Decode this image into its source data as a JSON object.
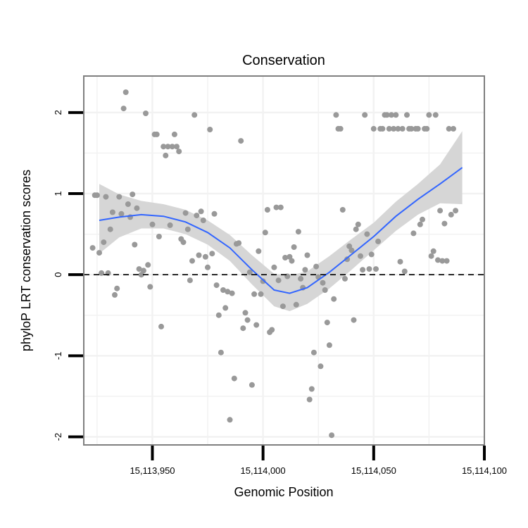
{
  "chart_data": {
    "type": "scatter",
    "title": "Conservation",
    "xlabel": "Genomic Position",
    "ylabel": "phyloP LRT conservation scores",
    "xlim": [
      15113919,
      15114100
    ],
    "ylim": [
      -2.1,
      2.45
    ],
    "x_ticks": [
      15113950,
      15114000,
      15114050,
      15114100
    ],
    "x_tick_labels": [
      "15,113,950",
      "15,114,000",
      "15,114,050",
      "15,114,100"
    ],
    "y_ticks": [
      -2,
      -1,
      0,
      1,
      2
    ],
    "y_tick_labels": [
      "-2",
      "-1",
      "0",
      "1",
      "2"
    ],
    "grid": true,
    "reference_line": {
      "y": 0,
      "style": "dashed"
    },
    "colors": {
      "points": "#999999",
      "smooth_line": "#3366ff",
      "confidence_band": "#d6d6d6",
      "grid": "#f2f2f2",
      "panel_border": "#7f7f7f",
      "reference_line": "#000000"
    },
    "smooth": {
      "method": "loess",
      "x": [
        15113926,
        15113935,
        15113945,
        15113955,
        15113965,
        15113975,
        15113985,
        15113995,
        15114005,
        15114012,
        15114020,
        15114030,
        15114040,
        15114050,
        15114060,
        15114070,
        15114080,
        15114090
      ],
      "y": [
        0.67,
        0.71,
        0.74,
        0.72,
        0.65,
        0.52,
        0.33,
        0.06,
        -0.19,
        -0.23,
        -0.16,
        0.03,
        0.25,
        0.47,
        0.72,
        0.93,
        1.12,
        1.32
      ],
      "lower": [
        0.26,
        0.46,
        0.57,
        0.57,
        0.5,
        0.37,
        0.17,
        -0.12,
        -0.39,
        -0.45,
        -0.36,
        -0.17,
        0.06,
        0.3,
        0.54,
        0.74,
        0.88,
        0.87
      ],
      "upper": [
        1.12,
        0.99,
        0.91,
        0.87,
        0.8,
        0.67,
        0.49,
        0.24,
        0.01,
        -0.01,
        0.04,
        0.23,
        0.44,
        0.64,
        0.9,
        1.12,
        1.36,
        1.77
      ]
    },
    "points": [
      [
        15113923,
        0.33
      ],
      [
        15113924,
        0.98
      ],
      [
        15113925,
        0.98
      ],
      [
        15113926,
        0.27
      ],
      [
        15113927,
        0.02
      ],
      [
        15113928,
        0.4
      ],
      [
        15113929,
        0.96
      ],
      [
        15113930,
        0.02
      ],
      [
        15113931,
        0.56
      ],
      [
        15113932,
        0.77
      ],
      [
        15113933,
        -0.25
      ],
      [
        15113934,
        -0.17
      ],
      [
        15113935,
        0.96
      ],
      [
        15113936,
        0.75
      ],
      [
        15113937,
        2.05
      ],
      [
        15113938,
        2.25
      ],
      [
        15113939,
        0.87
      ],
      [
        15113940,
        0.71
      ],
      [
        15113941,
        0.99
      ],
      [
        15113942,
        0.37
      ],
      [
        15113943,
        0.82
      ],
      [
        15113944,
        0.07
      ],
      [
        15113945,
        0.0
      ],
      [
        15113946,
        0.05
      ],
      [
        15113947,
        1.99
      ],
      [
        15113948,
        0.12
      ],
      [
        15113949,
        -0.15
      ],
      [
        15113950,
        0.62
      ],
      [
        15113951,
        1.73
      ],
      [
        15113952,
        1.73
      ],
      [
        15113953,
        0.47
      ],
      [
        15113954,
        -0.64
      ],
      [
        15113955,
        1.58
      ],
      [
        15113956,
        1.47
      ],
      [
        15113957,
        1.58
      ],
      [
        15113958,
        0.61
      ],
      [
        15113959,
        1.58
      ],
      [
        15113960,
        1.73
      ],
      [
        15113961,
        1.58
      ],
      [
        15113962,
        1.52
      ],
      [
        15113963,
        0.44
      ],
      [
        15113964,
        0.4
      ],
      [
        15113965,
        0.76
      ],
      [
        15113966,
        0.56
      ],
      [
        15113967,
        -0.07
      ],
      [
        15113968,
        0.17
      ],
      [
        15113969,
        1.97
      ],
      [
        15113970,
        0.73
      ],
      [
        15113971,
        0.24
      ],
      [
        15113972,
        0.78
      ],
      [
        15113973,
        0.67
      ],
      [
        15113974,
        0.22
      ],
      [
        15113975,
        0.09
      ],
      [
        15113976,
        1.79
      ],
      [
        15113977,
        0.26
      ],
      [
        15113978,
        0.75
      ],
      [
        15113979,
        -0.13
      ],
      [
        15113980,
        -0.5
      ],
      [
        15113981,
        -0.96
      ],
      [
        15113982,
        -0.19
      ],
      [
        15113983,
        -0.41
      ],
      [
        15113984,
        -0.21
      ],
      [
        15113985,
        -1.79
      ],
      [
        15113986,
        -0.23
      ],
      [
        15113987,
        -1.28
      ],
      [
        15113988,
        0.38
      ],
      [
        15113989,
        0.39
      ],
      [
        15113990,
        1.65
      ],
      [
        15113991,
        -0.66
      ],
      [
        15113992,
        -0.47
      ],
      [
        15113993,
        -0.56
      ],
      [
        15113994,
        0.03
      ],
      [
        15113995,
        -1.36
      ],
      [
        15113996,
        -0.24
      ],
      [
        15113997,
        -0.62
      ],
      [
        15113998,
        0.29
      ],
      [
        15113999,
        -0.24
      ],
      [
        15114000,
        -0.08
      ],
      [
        15114001,
        0.52
      ],
      [
        15114002,
        0.8
      ],
      [
        15114003,
        -0.71
      ],
      [
        15114004,
        -0.68
      ],
      [
        15114005,
        0.09
      ],
      [
        15114006,
        0.83
      ],
      [
        15114007,
        -0.07
      ],
      [
        15114008,
        0.83
      ],
      [
        15114009,
        -0.39
      ],
      [
        15114010,
        0.21
      ],
      [
        15114011,
        -0.02
      ],
      [
        15114012,
        0.22
      ],
      [
        15114013,
        0.17
      ],
      [
        15114014,
        0.34
      ],
      [
        15114015,
        -0.37
      ],
      [
        15114016,
        0.53
      ],
      [
        15114017,
        -0.05
      ],
      [
        15114018,
        -0.16
      ],
      [
        15114019,
        0.06
      ],
      [
        15114020,
        0.24
      ],
      [
        15114021,
        -1.54
      ],
      [
        15114022,
        -1.41
      ],
      [
        15114023,
        -0.96
      ],
      [
        15114024,
        0.1
      ],
      [
        15114025,
        -0.03
      ],
      [
        15114026,
        -1.13
      ],
      [
        15114027,
        -0.1
      ],
      [
        15114028,
        -0.19
      ],
      [
        15114029,
        -0.59
      ],
      [
        15114030,
        -0.87
      ],
      [
        15114031,
        -1.98
      ],
      [
        15114032,
        -0.3
      ],
      [
        15114033,
        1.97
      ],
      [
        15114034,
        1.8
      ],
      [
        15114035,
        1.8
      ],
      [
        15114036,
        0.8
      ],
      [
        15114037,
        -0.05
      ],
      [
        15114038,
        0.19
      ],
      [
        15114039,
        0.35
      ],
      [
        15114040,
        0.3
      ],
      [
        15114041,
        -0.56
      ],
      [
        15114042,
        0.56
      ],
      [
        15114043,
        0.62
      ],
      [
        15114044,
        0.23
      ],
      [
        15114045,
        0.06
      ],
      [
        15114046,
        1.97
      ],
      [
        15114047,
        0.5
      ],
      [
        15114048,
        0.07
      ],
      [
        15114049,
        0.25
      ],
      [
        15114050,
        1.8
      ],
      [
        15114051,
        0.07
      ],
      [
        15114052,
        0.41
      ],
      [
        15114053,
        1.8
      ],
      [
        15114054,
        1.8
      ],
      [
        15114055,
        1.97
      ],
      [
        15114056,
        1.97
      ],
      [
        15114057,
        1.8
      ],
      [
        15114058,
        1.97
      ],
      [
        15114059,
        1.8
      ],
      [
        15114060,
        1.97
      ],
      [
        15114061,
        1.8
      ],
      [
        15114062,
        0.16
      ],
      [
        15114063,
        1.8
      ],
      [
        15114064,
        0.04
      ],
      [
        15114065,
        1.97
      ],
      [
        15114066,
        1.8
      ],
      [
        15114067,
        1.8
      ],
      [
        15114068,
        0.51
      ],
      [
        15114069,
        1.8
      ],
      [
        15114070,
        1.8
      ],
      [
        15114071,
        0.62
      ],
      [
        15114072,
        0.68
      ],
      [
        15114073,
        1.8
      ],
      [
        15114074,
        1.8
      ],
      [
        15114075,
        1.97
      ],
      [
        15114076,
        0.23
      ],
      [
        15114077,
        0.29
      ],
      [
        15114078,
        1.97
      ],
      [
        15114079,
        0.18
      ],
      [
        15114080,
        0.79
      ],
      [
        15114081,
        0.17
      ],
      [
        15114082,
        0.63
      ],
      [
        15114083,
        0.17
      ],
      [
        15114084,
        1.8
      ],
      [
        15114085,
        0.74
      ],
      [
        15114086,
        1.8
      ],
      [
        15114087,
        0.79
      ]
    ]
  }
}
